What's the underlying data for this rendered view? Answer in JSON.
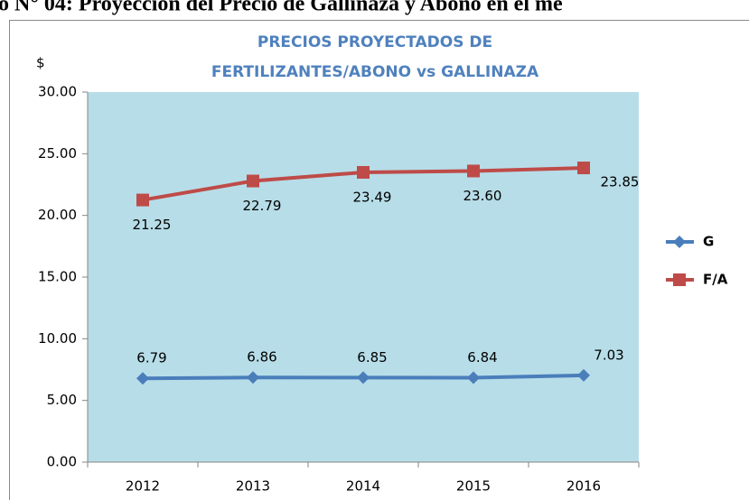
{
  "chart_data": {
    "type": "line",
    "caption": "o N° 04: Proyección del Precio de Gallinaza y Abono en el me",
    "title": [
      "PRECIOS PROYECTADOS DE",
      "FERTILIZANTES/ABONO vs GALLINAZA"
    ],
    "ylabel": "$",
    "categories": [
      "2012",
      "2013",
      "2014",
      "2015",
      "2016"
    ],
    "series": [
      {
        "name": "G",
        "color": "#4a7ebb",
        "marker": "diamond",
        "values": [
          6.79,
          6.86,
          6.85,
          6.84,
          7.03
        ],
        "value_labels": [
          "6.79",
          "6.86",
          "6.85",
          "6.84",
          "7.03"
        ]
      },
      {
        "name": "F/A",
        "color": "#be4b48",
        "marker": "square",
        "values": [
          21.25,
          22.79,
          23.49,
          23.6,
          23.85
        ],
        "value_labels": [
          "21.25",
          "22.79",
          "23.49",
          "23.60",
          "23.85"
        ]
      }
    ],
    "ylim": [
      0,
      30
    ],
    "yticks": [
      {
        "value": 0,
        "label": "0.00"
      },
      {
        "value": 5,
        "label": "5.00"
      },
      {
        "value": 10,
        "label": "10.00"
      },
      {
        "value": 15,
        "label": "15.00"
      },
      {
        "value": 20,
        "label": "20.00"
      },
      {
        "value": 25,
        "label": "25.00"
      },
      {
        "value": 30,
        "label": "30.00"
      }
    ],
    "legend": "right"
  }
}
